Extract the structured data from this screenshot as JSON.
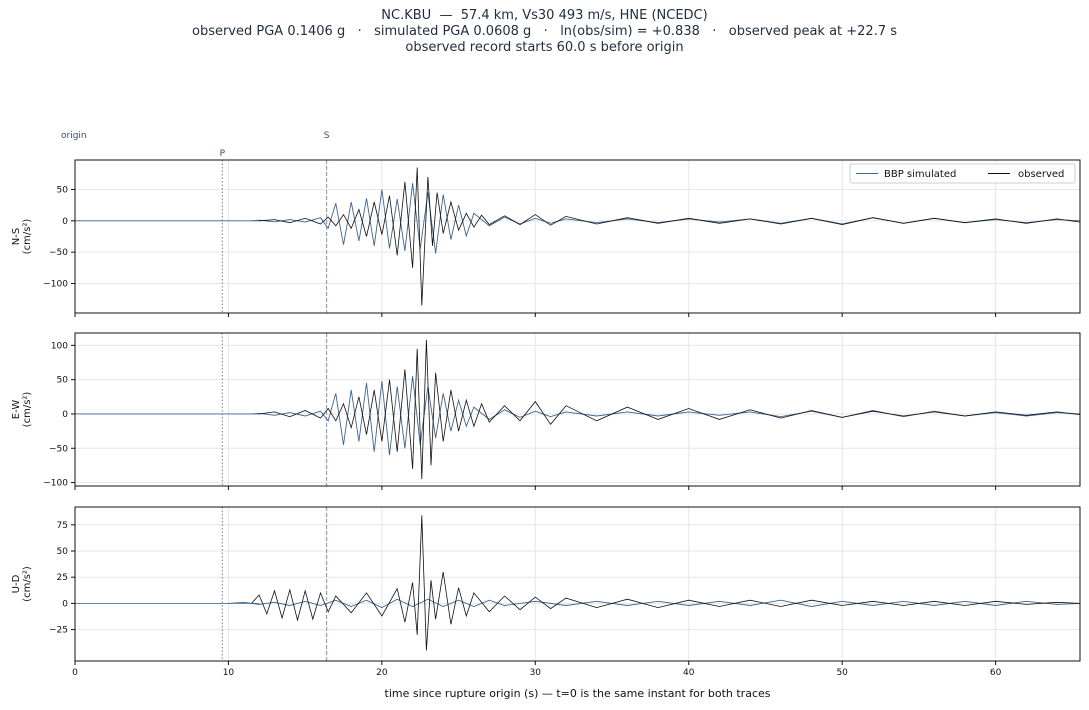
{
  "title": {
    "line1": "NC.KBU  —  57.4 km, Vs30 493 m/s, HNE (NCEDC)",
    "line2": "observed PGA 0.1406 g   ·   simulated PGA 0.0608 g   ·   ln(obs/sim) = +0.838   ·   observed peak at +22.7 s",
    "line3": "observed record starts 60.0 s before origin"
  },
  "colors": {
    "simulated": "#3d6690",
    "observed": "#111111",
    "p_line": "#7a7a8c",
    "s_line": "#8090b8",
    "grid": "#e6e6e6"
  },
  "chart_data": {
    "type": "line",
    "xlabel": "time since rupture origin (s)   —   t=0 is the same instant for both traces",
    "xlim": [
      0,
      65.5
    ],
    "xticks": [
      0,
      10,
      20,
      30,
      40,
      50,
      60
    ],
    "grid": true,
    "legend": {
      "placement": "top-right",
      "entries": [
        "BBP simulated",
        "observed"
      ]
    },
    "phase_markers": [
      {
        "label": "origin",
        "t": 0
      },
      {
        "label": "P",
        "t": 9.6
      },
      {
        "label": "S",
        "t": 16.4
      }
    ],
    "panels": [
      {
        "component": "N-S",
        "ylabel_line1": "N-S",
        "ylabel_line2": "(cm/s²)",
        "ylim": [
          -147,
          97
        ],
        "yticks": [
          -100,
          -50,
          0,
          50
        ],
        "series": [
          {
            "name": "BBP simulated",
            "x": [
              11.5,
              12,
              13,
              14,
              15,
              16,
              16.5,
              17,
              17.5,
              18,
              18.5,
              19,
              19.5,
              20,
              20.5,
              21,
              21.5,
              22,
              22.5,
              23,
              23.5,
              24,
              24.5,
              25,
              25.5,
              26,
              27,
              28,
              29,
              30,
              31,
              32,
              34,
              36,
              38,
              40,
              42,
              44,
              46,
              48,
              50,
              52,
              54,
              56,
              58,
              60,
              62,
              64,
              65.5
            ],
            "y": [
              0,
              1,
              -1.5,
              2,
              -2,
              5,
              -12,
              28,
              -38,
              30,
              -32,
              36,
              -40,
              50,
              -44,
              35,
              -48,
              60,
              -45,
              45,
              -52,
              42,
              -30,
              25,
              -24,
              12,
              -8,
              6,
              -5,
              4,
              -4,
              3,
              -3,
              3,
              -3,
              3,
              -2,
              3,
              -4,
              4,
              -5,
              5,
              -4,
              4,
              -3,
              2,
              -3,
              2,
              0
            ]
          },
          {
            "name": "observed",
            "x": [
              12,
              13,
              14,
              15,
              16,
              16.5,
              17,
              17.5,
              18,
              18.5,
              19,
              19.5,
              20,
              20.5,
              21,
              21.5,
              22,
              22.3,
              22.6,
              23,
              23.3,
              23.6,
              24,
              24.5,
              25,
              25.5,
              26,
              26.5,
              27,
              28,
              29,
              30,
              31,
              32,
              34,
              36,
              38,
              40,
              42,
              44,
              46,
              48,
              50,
              52,
              54,
              56,
              58,
              60,
              62,
              64,
              65.5
            ],
            "y": [
              0,
              2,
              -3,
              4,
              -5,
              6,
              -8,
              10,
              -12,
              18,
              -25,
              30,
              -22,
              40,
              -55,
              62,
              -75,
              85,
              -135,
              70,
              -40,
              45,
              -20,
              30,
              -15,
              12,
              -10,
              9,
              -6,
              8,
              -6,
              10,
              -7,
              7,
              -5,
              5,
              -4,
              4,
              -4,
              3,
              -5,
              4,
              -6,
              5,
              -4,
              4,
              -3,
              3,
              -4,
              3,
              -2
            ]
          }
        ]
      },
      {
        "component": "E-W",
        "ylabel_line1": "E-W",
        "ylabel_line2": "(cm/s²)",
        "ylim": [
          -105,
          118
        ],
        "yticks": [
          -100,
          -50,
          0,
          50,
          100
        ],
        "series": [
          {
            "name": "BBP simulated",
            "x": [
              11.5,
              12,
              13,
              14,
              15,
              16,
              16.5,
              17,
              17.5,
              18,
              18.5,
              19,
              19.5,
              20,
              20.5,
              21,
              21.5,
              22,
              22.5,
              23,
              23.5,
              24,
              24.5,
              25,
              25.5,
              26,
              27,
              28,
              29,
              30,
              31,
              32,
              34,
              36,
              38,
              40,
              42,
              44,
              46,
              48,
              50,
              52,
              54,
              56,
              58,
              60,
              62,
              64,
              65.5
            ],
            "y": [
              0,
              1,
              -2,
              2,
              -3,
              4,
              -10,
              30,
              -45,
              35,
              -40,
              45,
              -55,
              48,
              -60,
              40,
              -50,
              55,
              -45,
              40,
              -35,
              30,
              -25,
              20,
              -18,
              10,
              -8,
              6,
              -5,
              4,
              -4,
              3,
              -3,
              3,
              -3,
              3,
              -2,
              3,
              -4,
              4,
              -5,
              5,
              -4,
              4,
              -3,
              2,
              -3,
              2,
              0
            ]
          },
          {
            "name": "observed",
            "x": [
              12,
              13,
              14,
              15,
              16,
              16.5,
              17,
              17.5,
              18,
              18.5,
              19,
              19.5,
              20,
              20.5,
              21,
              21.5,
              22,
              22.3,
              22.6,
              22.9,
              23.2,
              23.5,
              24,
              24.5,
              25,
              25.5,
              26,
              26.5,
              27,
              28,
              29,
              30,
              31,
              32,
              34,
              36,
              38,
              40,
              42,
              44,
              46,
              48,
              50,
              52,
              54,
              56,
              58,
              60,
              62,
              64,
              65.5
            ],
            "y": [
              0,
              3,
              -4,
              5,
              -6,
              8,
              -10,
              15,
              -20,
              25,
              -30,
              35,
              -40,
              50,
              -55,
              65,
              -80,
              95,
              -95,
              108,
              -75,
              60,
              -40,
              35,
              -25,
              20,
              -18,
              15,
              -12,
              12,
              -10,
              18,
              -15,
              12,
              -10,
              10,
              -8,
              8,
              -8,
              6,
              -6,
              5,
              -5,
              4,
              -3,
              3,
              -3,
              3,
              -2,
              3,
              -1
            ]
          }
        ]
      },
      {
        "component": "U-D",
        "ylabel_line1": "U-D",
        "ylabel_line2": "(cm/s²)",
        "ylim": [
          -55,
          92
        ],
        "yticks": [
          -25,
          0,
          25,
          50,
          75
        ],
        "series": [
          {
            "name": "BBP simulated",
            "x": [
              10,
              11,
              12,
              13,
              14,
              15,
              16,
              17,
              18,
              19,
              20,
              21,
              22,
              23,
              24,
              25,
              26,
              27,
              28,
              30,
              32,
              34,
              36,
              38,
              40,
              42,
              44,
              46,
              48,
              50,
              52,
              54,
              56,
              58,
              60,
              62,
              64,
              65.5
            ],
            "y": [
              0,
              1,
              -1,
              1,
              -2,
              2,
              -2,
              3,
              -3,
              3,
              -4,
              4,
              -3,
              4,
              -3,
              3,
              -3,
              3,
              -2,
              2,
              -2,
              2,
              -2,
              2,
              -2,
              2,
              -2,
              3,
              -3,
              2,
              -2,
              2,
              -2,
              2,
              -2,
              2,
              -1,
              0
            ],
            "stroke_only": false
          },
          {
            "name": "observed",
            "x": [
              11.5,
              12,
              12.5,
              13,
              13.5,
              14,
              14.5,
              15,
              15.5,
              16,
              16.5,
              17,
              18,
              19,
              20,
              21,
              21.5,
              22,
              22.3,
              22.6,
              22.9,
              23.2,
              23.5,
              24,
              24.5,
              25,
              25.5,
              26,
              27,
              28,
              29,
              30,
              31,
              32,
              34,
              36,
              38,
              40,
              42,
              44,
              46,
              48,
              50,
              52,
              54,
              56,
              58,
              60,
              62,
              64,
              65.5
            ],
            "y": [
              0,
              8,
              -10,
              12,
              -14,
              13,
              -16,
              12,
              -15,
              10,
              -8,
              7,
              -9,
              10,
              -12,
              14,
              -18,
              20,
              -30,
              84,
              -45,
              22,
              -15,
              30,
              -20,
              15,
              -12,
              10,
              -8,
              7,
              -6,
              6,
              -5,
              5,
              -4,
              4,
              -4,
              3,
              -3,
              3,
              -3,
              3,
              -2,
              2,
              -2,
              2,
              -2,
              2,
              -1,
              1,
              0
            ]
          }
        ]
      }
    ]
  }
}
